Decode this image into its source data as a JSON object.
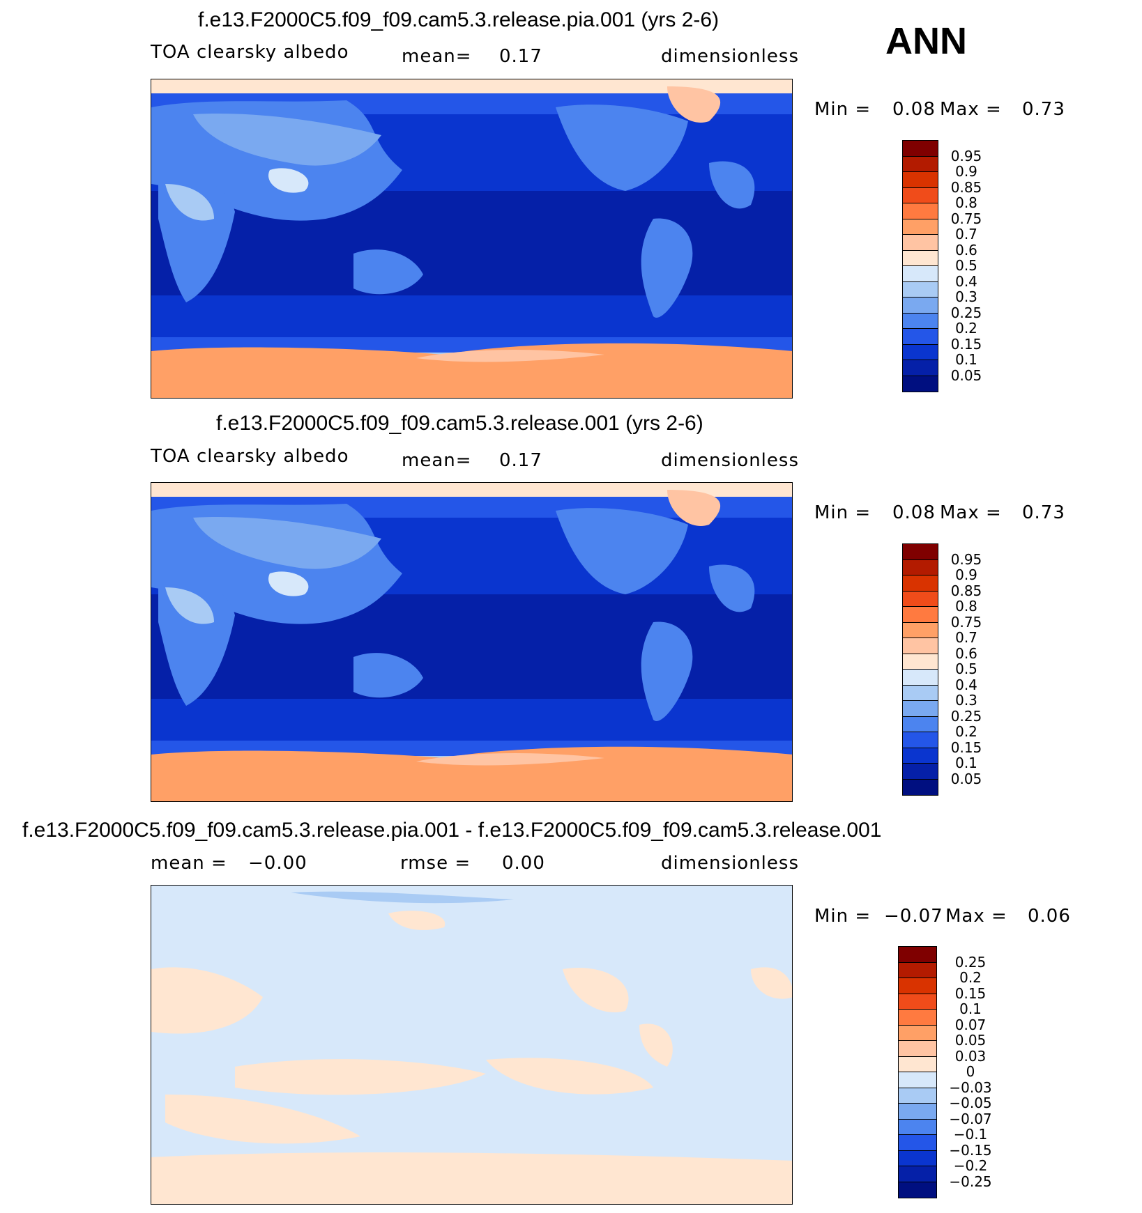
{
  "season": "ANN",
  "panels": [
    {
      "title": "f.e13.F2000C5.f09_f09.cam5.3.release.pia.001 (yrs 2-6)",
      "left_label": "TOA clearsky albedo",
      "mid_label": "mean=",
      "mid_value": "0.17",
      "units": "dimensionless",
      "min_label": "Min =",
      "min_value": "0.08",
      "max_label": "Max =",
      "max_value": "0.73",
      "levels": [
        "0.95",
        "0.9",
        "0.85",
        "0.8",
        "0.75",
        "0.7",
        "0.6",
        "0.5",
        "0.4",
        "0.3",
        "0.25",
        "0.2",
        "0.15",
        "0.1",
        "0.05"
      ],
      "colors": [
        "#7f0000",
        "#b31b00",
        "#d93300",
        "#f04c1a",
        "#ff7a40",
        "#ffa066",
        "#ffc4a3",
        "#ffe6d1",
        "#d7e8fa",
        "#a9cbf4",
        "#7aa9f0",
        "#4c84ef",
        "#2456e8",
        "#0a35cf",
        "#0520a8",
        "#000f80"
      ]
    },
    {
      "title": "f.e13.F2000C5.f09_f09.cam5.3.release.001 (yrs 2-6)",
      "left_label": "TOA clearsky albedo",
      "mid_label": "mean=",
      "mid_value": "0.17",
      "units": "dimensionless",
      "min_label": "Min =",
      "min_value": "0.08",
      "max_label": "Max =",
      "max_value": "0.73",
      "levels": [
        "0.95",
        "0.9",
        "0.85",
        "0.8",
        "0.75",
        "0.7",
        "0.6",
        "0.5",
        "0.4",
        "0.3",
        "0.25",
        "0.2",
        "0.15",
        "0.1",
        "0.05"
      ],
      "colors": [
        "#7f0000",
        "#b31b00",
        "#d93300",
        "#f04c1a",
        "#ff7a40",
        "#ffa066",
        "#ffc4a3",
        "#ffe6d1",
        "#d7e8fa",
        "#a9cbf4",
        "#7aa9f0",
        "#4c84ef",
        "#2456e8",
        "#0a35cf",
        "#0520a8",
        "#000f80"
      ]
    },
    {
      "title": "f.e13.F2000C5.f09_f09.cam5.3.release.pia.001 - f.e13.F2000C5.f09_f09.cam5.3.release.001",
      "left_label": "mean =",
      "left_value": "−0.00",
      "mid_label": "rmse =",
      "mid_value": "0.00",
      "units": "dimensionless",
      "min_label": "Min =",
      "min_value": "−0.07",
      "max_label": "Max =",
      "max_value": "0.06",
      "levels": [
        "0.25",
        "0.2",
        "0.15",
        "0.1",
        "0.07",
        "0.05",
        "0.03",
        "0",
        "−0.03",
        "−0.05",
        "−0.07",
        "−0.1",
        "−0.15",
        "−0.2",
        "−0.25"
      ],
      "colors": [
        "#7f0000",
        "#b31b00",
        "#d93300",
        "#f04c1a",
        "#ff7a40",
        "#ffa066",
        "#ffc4a3",
        "#ffe6d1",
        "#d7e8fa",
        "#a9cbf4",
        "#7aa9f0",
        "#4c84ef",
        "#2456e8",
        "#0a35cf",
        "#0520a8",
        "#000f80"
      ]
    }
  ]
}
